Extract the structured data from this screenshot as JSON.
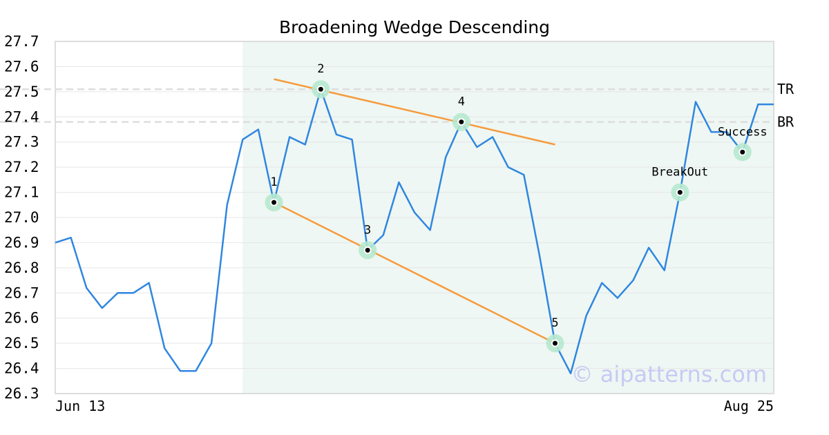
{
  "chart_data": {
    "type": "line",
    "title": "Broadening Wedge Descending",
    "xlabel": "",
    "ylabel": "",
    "x_tick_labels": [
      "Jun 13",
      "Aug 25"
    ],
    "ylim": [
      26.3,
      27.7
    ],
    "y_ticks": [
      "26.3",
      "26.4",
      "26.5",
      "26.6",
      "26.7",
      "26.8",
      "26.9",
      "27.0",
      "27.1",
      "27.2",
      "27.3",
      "27.4",
      "27.5",
      "27.6",
      "27.7"
    ],
    "grid": true,
    "series": [
      {
        "values": [
          26.9,
          26.92,
          26.72,
          26.64,
          26.7,
          26.7,
          26.74,
          26.48,
          26.39,
          26.39,
          26.5,
          27.05,
          27.31,
          27.35,
          27.06,
          27.32,
          27.29,
          27.51,
          27.33,
          27.31,
          26.87,
          26.93,
          27.14,
          27.02,
          26.95,
          27.24,
          27.38,
          27.28,
          27.32,
          27.2,
          27.17,
          26.85,
          26.5,
          26.38,
          26.61,
          26.74,
          26.68,
          26.75,
          26.88,
          26.79,
          27.1,
          27.46,
          27.34,
          27.34,
          27.26,
          27.45,
          27.45
        ]
      }
    ],
    "pattern_region": {
      "start_index": 12,
      "end_index": 46
    },
    "pattern_points": [
      {
        "label": "1",
        "index": 14,
        "value": 27.06
      },
      {
        "label": "2",
        "index": 17,
        "value": 27.51
      },
      {
        "label": "3",
        "index": 20,
        "value": 26.87
      },
      {
        "label": "4",
        "index": 26,
        "value": 27.38
      },
      {
        "label": "5",
        "index": 32,
        "value": 26.5
      },
      {
        "label": "BreakOut",
        "index": 40,
        "value": 27.1
      },
      {
        "label": "Success",
        "index": 44,
        "value": 27.26
      }
    ],
    "trendlines": [
      {
        "name": "upper",
        "from": {
          "index": 14,
          "value": 27.55
        },
        "to": {
          "index": 32,
          "value": 27.29
        }
      },
      {
        "name": "lower",
        "from": {
          "index": 14,
          "value": 27.06
        },
        "to": {
          "index": 32,
          "value": 26.5
        }
      }
    ],
    "levels": [
      {
        "label": "TR",
        "value": 27.51
      },
      {
        "label": "BR",
        "value": 27.38
      }
    ],
    "colors": {
      "line": "#2f86e0",
      "trend": "#f59b3d",
      "region": "#eef7f3",
      "marker_ring": "#b6e8cf",
      "grid": "#e6e6e6",
      "level": "#dddddd",
      "frame": "#dddddd"
    },
    "watermark": "© aipatterns.com"
  }
}
